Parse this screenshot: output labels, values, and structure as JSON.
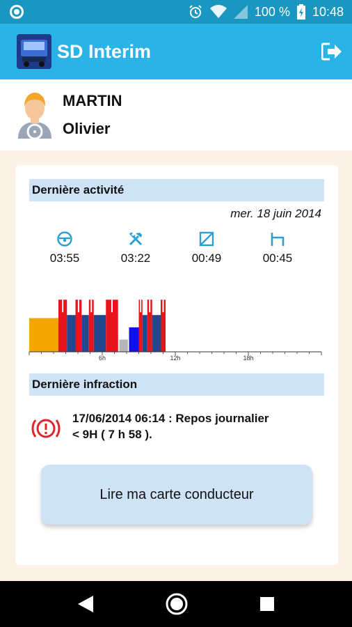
{
  "status_bar": {
    "battery": "100 %",
    "time": "10:48",
    "icons": [
      "notification-ring-icon",
      "alarm-icon",
      "wifi-icon",
      "signal-icon",
      "battery-charging-icon"
    ]
  },
  "app_bar": {
    "title": "SD Interim",
    "logo": "truck-logo",
    "logout_icon": "logout-icon"
  },
  "driver": {
    "last_name": "MARTIN",
    "first_name": "Olivier",
    "avatar_icon": "driver-avatar-icon"
  },
  "last_activity": {
    "title": "Dernière activité",
    "date": "mer. 18 juin 2014",
    "stats": [
      {
        "icon": "driving-wheel-icon",
        "value": "03:55"
      },
      {
        "icon": "tools-work-icon",
        "value": "03:22"
      },
      {
        "icon": "availability-icon",
        "value": "00:49"
      },
      {
        "icon": "rest-bed-icon",
        "value": "00:45"
      }
    ]
  },
  "chart_data": {
    "type": "bar",
    "x_ticks": [
      "6h",
      "12h",
      "18h"
    ],
    "x_range": [
      0,
      24
    ],
    "segments": [
      {
        "start": 0.0,
        "end": 2.4,
        "activity": "unknown",
        "color": "#f5a500",
        "level": 0.55
      },
      {
        "start": 2.4,
        "end": 3.1,
        "activity": "work",
        "color": "#e8141c",
        "level": 0.85
      },
      {
        "start": 3.1,
        "end": 3.8,
        "activity": "drive",
        "color": "#21478f",
        "level": 0.6
      },
      {
        "start": 3.8,
        "end": 4.3,
        "activity": "work",
        "color": "#e8141c",
        "level": 0.85
      },
      {
        "start": 4.3,
        "end": 4.9,
        "activity": "drive",
        "color": "#21478f",
        "level": 0.6
      },
      {
        "start": 4.9,
        "end": 5.3,
        "activity": "work",
        "color": "#e8141c",
        "level": 0.85
      },
      {
        "start": 5.3,
        "end": 6.3,
        "activity": "drive",
        "color": "#21478f",
        "level": 0.6
      },
      {
        "start": 6.3,
        "end": 7.3,
        "activity": "work",
        "color": "#e8141c",
        "level": 0.85
      },
      {
        "start": 7.4,
        "end": 8.1,
        "activity": "break",
        "color": "#b5b5b5",
        "level": 0.2
      },
      {
        "start": 8.2,
        "end": 9.0,
        "activity": "availability",
        "color": "#1010ee",
        "level": 0.4
      },
      {
        "start": 9.0,
        "end": 9.3,
        "activity": "work",
        "color": "#e8141c",
        "level": 0.85
      },
      {
        "start": 9.3,
        "end": 9.7,
        "activity": "drive",
        "color": "#21478f",
        "level": 0.6
      },
      {
        "start": 9.7,
        "end": 10.1,
        "activity": "work",
        "color": "#e8141c",
        "level": 0.85
      },
      {
        "start": 10.1,
        "end": 10.8,
        "activity": "drive",
        "color": "#21478f",
        "level": 0.6
      },
      {
        "start": 10.8,
        "end": 11.2,
        "activity": "work",
        "color": "#e8141c",
        "level": 0.85
      }
    ]
  },
  "last_infraction": {
    "title": "Dernière infraction",
    "icon": "alert-circle-icon",
    "line1": "17/06/2014 06:14 : Repos journalier",
    "line2": "< 9H ( 7 h 58 )."
  },
  "actions": {
    "read_card": "Lire ma carte conducteur"
  },
  "nav_bar": {
    "icons": [
      "back-icon",
      "home-icon",
      "recents-icon"
    ]
  }
}
